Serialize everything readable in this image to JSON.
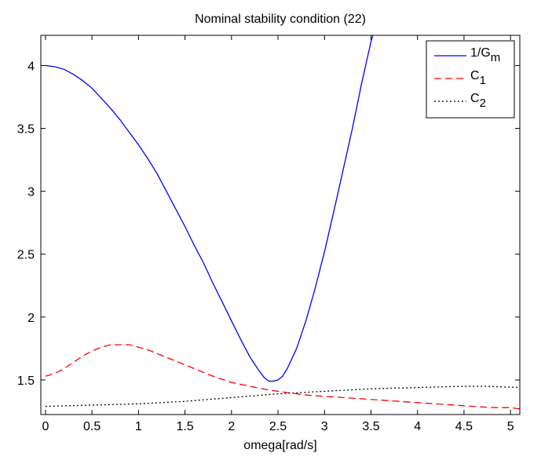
{
  "chart_data": {
    "type": "line",
    "title": "Nominal stability condition (22)",
    "xlabel": "omega[rad/s]",
    "ylabel": "",
    "xlim": [
      -0.05,
      5.1
    ],
    "ylim": [
      1.225,
      4.24
    ],
    "xticks": [
      0,
      0.5,
      1,
      1.5,
      2,
      2.5,
      3,
      3.5,
      4,
      4.5,
      5
    ],
    "xtick_labels": [
      "0",
      "0.5",
      "1",
      "1.5",
      "2",
      "2.5",
      "3",
      "3.5",
      "4",
      "4.5",
      "5"
    ],
    "yticks": [
      1.5,
      2,
      2.5,
      3,
      3.5,
      4
    ],
    "ytick_labels": [
      "1.5",
      "2",
      "2.5",
      "3",
      "3.5",
      "4"
    ],
    "grid": false,
    "legend_position": "top-right",
    "series": [
      {
        "name": "1/G",
        "subscript": "m",
        "color": "#0000ff",
        "style": "solid",
        "x": [
          0,
          0.1,
          0.2,
          0.3,
          0.4,
          0.5,
          0.6,
          0.7,
          0.8,
          0.9,
          1.0,
          1.1,
          1.2,
          1.3,
          1.4,
          1.5,
          1.6,
          1.7,
          1.8,
          1.9,
          2.0,
          2.1,
          2.2,
          2.3,
          2.35,
          2.4,
          2.45,
          2.5,
          2.55,
          2.6,
          2.7,
          2.8,
          2.9,
          3.0,
          3.1,
          3.2,
          3.3,
          3.4,
          3.5,
          3.52
        ],
        "values": [
          4.0,
          3.99,
          3.97,
          3.93,
          3.88,
          3.82,
          3.74,
          3.66,
          3.57,
          3.47,
          3.37,
          3.26,
          3.14,
          3.0,
          2.86,
          2.72,
          2.57,
          2.43,
          2.27,
          2.12,
          1.97,
          1.82,
          1.68,
          1.57,
          1.52,
          1.49,
          1.49,
          1.5,
          1.53,
          1.59,
          1.75,
          1.97,
          2.23,
          2.52,
          2.84,
          3.17,
          3.5,
          3.86,
          4.19,
          4.24
        ]
      },
      {
        "name": "C",
        "subscript": "1",
        "color": "#ff0000",
        "style": "dashed",
        "x": [
          0,
          0.1,
          0.2,
          0.3,
          0.4,
          0.5,
          0.6,
          0.7,
          0.8,
          0.9,
          1.0,
          1.1,
          1.2,
          1.4,
          1.6,
          1.8,
          2.0,
          2.2,
          2.4,
          2.6,
          2.8,
          3.0,
          3.2,
          3.4,
          3.6,
          3.8,
          4.0,
          4.2,
          4.4,
          4.6,
          4.8,
          5.0,
          5.1
        ],
        "values": [
          1.53,
          1.55,
          1.59,
          1.64,
          1.69,
          1.73,
          1.76,
          1.78,
          1.78,
          1.78,
          1.76,
          1.74,
          1.71,
          1.65,
          1.59,
          1.53,
          1.48,
          1.45,
          1.42,
          1.4,
          1.38,
          1.37,
          1.36,
          1.35,
          1.34,
          1.33,
          1.32,
          1.31,
          1.3,
          1.29,
          1.28,
          1.28,
          1.27
        ]
      },
      {
        "name": "C",
        "subscript": "2",
        "color": "#000000",
        "style": "dotted",
        "x": [
          0,
          0.5,
          1.0,
          1.5,
          2.0,
          2.5,
          3.0,
          3.5,
          4.0,
          4.5,
          4.7,
          5.1
        ],
        "values": [
          1.29,
          1.3,
          1.31,
          1.33,
          1.36,
          1.39,
          1.41,
          1.43,
          1.44,
          1.45,
          1.45,
          1.44
        ]
      }
    ]
  }
}
